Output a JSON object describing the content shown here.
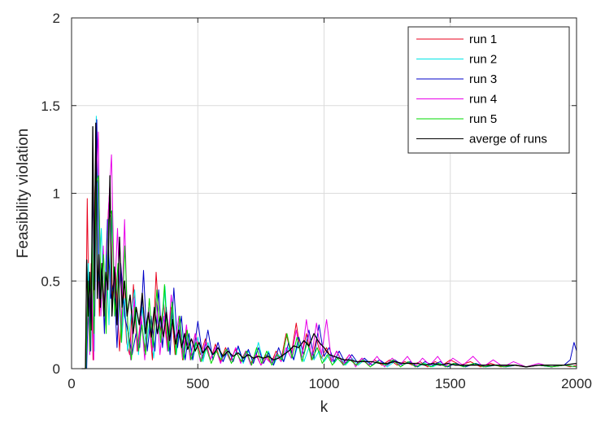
{
  "chart_data": {
    "type": "line",
    "title": "",
    "xlabel": "k",
    "ylabel": "Feasibility violation",
    "xlim": [
      0,
      2000
    ],
    "ylim": [
      0,
      2
    ],
    "xticks": [
      0,
      500,
      1000,
      1500,
      2000
    ],
    "yticks": [
      0,
      0.5,
      1,
      1.5,
      2
    ],
    "xtick_labels": [
      "0",
      "500",
      "1000",
      "1500",
      "2000"
    ],
    "ytick_labels": [
      "0",
      "0.5",
      "1",
      "1.5",
      "2"
    ],
    "grid": true,
    "legend_position": "top-right",
    "series": [
      {
        "name": "run 1",
        "color": "#e8001c",
        "x": [
          40,
          55,
          62,
          70,
          78,
          85,
          92,
          100,
          110,
          120,
          130,
          140,
          152,
          162,
          175,
          190,
          205,
          218,
          230,
          245,
          260,
          275,
          290,
          305,
          320,
          335,
          350,
          365,
          380,
          395,
          410,
          425,
          440,
          455,
          470,
          490,
          510,
          530,
          550,
          570,
          590,
          610,
          630,
          650,
          670,
          690,
          710,
          730,
          750,
          770,
          790,
          810,
          830,
          850,
          870,
          890,
          910,
          930,
          950,
          970,
          990,
          1010,
          1030,
          1050,
          1075,
          1100,
          1125,
          1150,
          1175,
          1200,
          1230,
          1260,
          1290,
          1320,
          1350,
          1380,
          1410,
          1440,
          1470,
          1500,
          1540,
          1580,
          1620,
          1660,
          1700,
          1750,
          1800,
          1850,
          1900,
          1950,
          1975,
          2000
        ],
        "y": [
          0,
          0,
          0.97,
          0.2,
          0.6,
          0.05,
          1.0,
          1.3,
          0.3,
          0.6,
          0.35,
          0.75,
          1.05,
          0.4,
          0.55,
          0.1,
          0.5,
          0.15,
          0.08,
          0.48,
          0.1,
          0.3,
          0.1,
          0.32,
          0.05,
          0.55,
          0.2,
          0.38,
          0.12,
          0.35,
          0.08,
          0.25,
          0.05,
          0.22,
          0.06,
          0.2,
          0.08,
          0.17,
          0.05,
          0.14,
          0.04,
          0.12,
          0.05,
          0.11,
          0.04,
          0.1,
          0.03,
          0.09,
          0.02,
          0.08,
          0.03,
          0.1,
          0.05,
          0.2,
          0.08,
          0.26,
          0.06,
          0.2,
          0.05,
          0.17,
          0.06,
          0.12,
          0.04,
          0.1,
          0.03,
          0.08,
          0.02,
          0.06,
          0.02,
          0.05,
          0.02,
          0.05,
          0.02,
          0.04,
          0.02,
          0.04,
          0.01,
          0.04,
          0.02,
          0.05,
          0.02,
          0.04,
          0.01,
          0.03,
          0.01,
          0.02,
          0.01,
          0.02,
          0.01,
          0.02,
          0.01,
          0.02
        ]
      },
      {
        "name": "run 2",
        "color": "#00e5e5",
        "x": [
          40,
          58,
          66,
          74,
          82,
          90,
          98,
          108,
          118,
          128,
          138,
          148,
          160,
          172,
          185,
          198,
          210,
          222,
          235,
          250,
          265,
          280,
          295,
          310,
          325,
          340,
          355,
          370,
          385,
          400,
          415,
          430,
          445,
          460,
          480,
          500,
          520,
          540,
          560,
          580,
          600,
          620,
          640,
          660,
          680,
          700,
          720,
          740,
          760,
          780,
          800,
          820,
          840,
          860,
          880,
          900,
          920,
          940,
          960,
          980,
          1000,
          1020,
          1040,
          1060,
          1085,
          1110,
          1135,
          1160,
          1190,
          1220,
          1250,
          1280,
          1310,
          1340,
          1370,
          1400,
          1430,
          1460,
          1490,
          1520,
          1560,
          1600,
          1640,
          1680,
          1720,
          1760,
          1800,
          1850,
          1900,
          1950,
          2000
        ],
        "y": [
          0,
          0,
          0.6,
          0.15,
          0.7,
          0.1,
          1.44,
          0.5,
          0.8,
          0.3,
          0.65,
          0.25,
          0.9,
          0.35,
          0.6,
          0.15,
          0.4,
          0.1,
          0.3,
          0.45,
          0.08,
          0.35,
          0.12,
          0.28,
          0.06,
          0.3,
          0.15,
          0.47,
          0.1,
          0.38,
          0.08,
          0.28,
          0.06,
          0.2,
          0.05,
          0.18,
          0.04,
          0.15,
          0.06,
          0.12,
          0.04,
          0.1,
          0.05,
          0.12,
          0.03,
          0.1,
          0.04,
          0.15,
          0.03,
          0.1,
          0.02,
          0.08,
          0.04,
          0.12,
          0.05,
          0.15,
          0.04,
          0.12,
          0.05,
          0.1,
          0.04,
          0.08,
          0.03,
          0.07,
          0.02,
          0.06,
          0.02,
          0.05,
          0.02,
          0.05,
          0.01,
          0.04,
          0.02,
          0.04,
          0.01,
          0.03,
          0.01,
          0.03,
          0.01,
          0.03,
          0.01,
          0.03,
          0.01,
          0.02,
          0.01,
          0.02,
          0.01,
          0.02,
          0.01,
          0.02,
          0.01
        ]
      },
      {
        "name": "run 3",
        "color": "#0000c8",
        "x": [
          40,
          60,
          68,
          76,
          84,
          92,
          100,
          110,
          120,
          130,
          142,
          155,
          168,
          180,
          195,
          210,
          225,
          240,
          255,
          270,
          285,
          300,
          315,
          330,
          345,
          360,
          375,
          390,
          405,
          420,
          435,
          450,
          465,
          480,
          500,
          520,
          540,
          560,
          580,
          600,
          620,
          640,
          660,
          680,
          700,
          720,
          740,
          760,
          780,
          800,
          820,
          840,
          860,
          880,
          900,
          920,
          940,
          960,
          980,
          1000,
          1020,
          1040,
          1060,
          1085,
          1110,
          1135,
          1160,
          1190,
          1220,
          1250,
          1280,
          1310,
          1340,
          1370,
          1400,
          1430,
          1460,
          1490,
          1520,
          1560,
          1600,
          1640,
          1680,
          1720,
          1760,
          1800,
          1850,
          1900,
          1950,
          1975,
          1990,
          2000
        ],
        "y": [
          0,
          0,
          0.5,
          0.1,
          1.05,
          0.3,
          1.42,
          0.4,
          0.6,
          0.2,
          0.85,
          0.4,
          0.5,
          0.12,
          0.6,
          0.3,
          0.2,
          0.08,
          0.2,
          0.12,
          0.56,
          0.1,
          0.3,
          0.1,
          0.45,
          0.12,
          0.35,
          0.08,
          0.46,
          0.12,
          0.3,
          0.05,
          0.2,
          0.05,
          0.27,
          0.06,
          0.22,
          0.05,
          0.15,
          0.04,
          0.12,
          0.04,
          0.13,
          0.04,
          0.11,
          0.03,
          0.12,
          0.03,
          0.09,
          0.02,
          0.12,
          0.04,
          0.15,
          0.05,
          0.18,
          0.08,
          0.22,
          0.06,
          0.25,
          0.07,
          0.12,
          0.04,
          0.1,
          0.03,
          0.08,
          0.03,
          0.06,
          0.02,
          0.05,
          0.02,
          0.05,
          0.02,
          0.04,
          0.01,
          0.04,
          0.02,
          0.04,
          0.01,
          0.03,
          0.01,
          0.03,
          0.01,
          0.02,
          0.01,
          0.02,
          0.01,
          0.02,
          0.01,
          0.02,
          0.05,
          0.15,
          0.1
        ]
      },
      {
        "name": "run 4",
        "color": "#e800e8",
        "x": [
          40,
          56,
          64,
          72,
          80,
          88,
          96,
          106,
          116,
          126,
          136,
          146,
          158,
          170,
          182,
          196,
          210,
          222,
          234,
          248,
          262,
          276,
          290,
          305,
          320,
          335,
          350,
          365,
          380,
          395,
          410,
          425,
          440,
          455,
          470,
          490,
          510,
          530,
          550,
          570,
          590,
          610,
          630,
          650,
          670,
          690,
          710,
          730,
          750,
          770,
          790,
          810,
          830,
          850,
          870,
          890,
          910,
          930,
          950,
          970,
          990,
          1010,
          1030,
          1050,
          1075,
          1100,
          1125,
          1150,
          1180,
          1210,
          1240,
          1270,
          1300,
          1330,
          1360,
          1390,
          1420,
          1450,
          1480,
          1510,
          1550,
          1590,
          1630,
          1670,
          1710,
          1750,
          1800,
          1850,
          1900,
          1950,
          2000
        ],
        "y": [
          0,
          0,
          0.4,
          0.08,
          0.5,
          0.05,
          1.0,
          1.35,
          0.3,
          0.7,
          0.25,
          0.9,
          1.22,
          0.4,
          0.8,
          0.2,
          0.85,
          0.25,
          0.05,
          0.4,
          0.1,
          0.3,
          0.05,
          0.35,
          0.1,
          0.4,
          0.08,
          0.3,
          0.1,
          0.42,
          0.15,
          0.3,
          0.06,
          0.25,
          0.05,
          0.2,
          0.04,
          0.15,
          0.05,
          0.12,
          0.03,
          0.1,
          0.04,
          0.12,
          0.03,
          0.1,
          0.02,
          0.08,
          0.02,
          0.06,
          0.03,
          0.08,
          0.04,
          0.12,
          0.06,
          0.22,
          0.05,
          0.28,
          0.06,
          0.26,
          0.08,
          0.28,
          0.04,
          0.1,
          0.02,
          0.08,
          0.01,
          0.06,
          0.02,
          0.07,
          0.01,
          0.06,
          0.02,
          0.07,
          0.01,
          0.06,
          0.02,
          0.07,
          0.01,
          0.06,
          0.02,
          0.07,
          0.01,
          0.05,
          0.01,
          0.04,
          0.01,
          0.03,
          0.01,
          0.02,
          0.01
        ]
      },
      {
        "name": "run 5",
        "color": "#00d800",
        "x": [
          40,
          57,
          65,
          73,
          81,
          89,
          97,
          107,
          117,
          127,
          137,
          147,
          159,
          171,
          184,
          197,
          211,
          224,
          237,
          251,
          265,
          279,
          293,
          308,
          323,
          338,
          353,
          368,
          383,
          398,
          413,
          428,
          443,
          458,
          473,
          493,
          513,
          533,
          553,
          573,
          593,
          613,
          633,
          653,
          673,
          693,
          713,
          733,
          753,
          773,
          793,
          813,
          833,
          853,
          873,
          893,
          913,
          933,
          953,
          973,
          993,
          1013,
          1033,
          1053,
          1078,
          1103,
          1128,
          1153,
          1183,
          1213,
          1243,
          1273,
          1303,
          1333,
          1363,
          1393,
          1423,
          1453,
          1483,
          1513,
          1553,
          1593,
          1633,
          1673,
          1713,
          1753,
          1803,
          1853,
          1903,
          1953,
          2000
        ],
        "y": [
          0,
          0,
          0.5,
          0.1,
          0.75,
          0.2,
          1.05,
          1.1,
          0.4,
          0.65,
          0.2,
          0.85,
          0.9,
          0.3,
          0.6,
          0.15,
          0.7,
          0.2,
          0.05,
          0.35,
          0.1,
          0.25,
          0.08,
          0.4,
          0.12,
          0.45,
          0.15,
          0.48,
          0.1,
          0.38,
          0.08,
          0.3,
          0.05,
          0.22,
          0.05,
          0.15,
          0.04,
          0.12,
          0.03,
          0.1,
          0.05,
          0.11,
          0.03,
          0.09,
          0.04,
          0.1,
          0.02,
          0.12,
          0.03,
          0.1,
          0.02,
          0.08,
          0.05,
          0.2,
          0.06,
          0.18,
          0.04,
          0.15,
          0.05,
          0.12,
          0.03,
          0.08,
          0.02,
          0.06,
          0.02,
          0.05,
          0.02,
          0.05,
          0.01,
          0.04,
          0.02,
          0.05,
          0.01,
          0.04,
          0.01,
          0.03,
          0.01,
          0.03,
          0.01,
          0.03,
          0.01,
          0.03,
          0.01,
          0.02,
          0.01,
          0.02,
          0.01,
          0.02,
          0.01,
          0.02,
          0.01
        ]
      },
      {
        "name": "averge of runs",
        "color": "#000000",
        "x": [
          40,
          55,
          60,
          66,
          72,
          78,
          84,
          90,
          96,
          102,
          108,
          114,
          120,
          128,
          136,
          144,
          152,
          160,
          170,
          180,
          190,
          200,
          210,
          220,
          232,
          244,
          256,
          268,
          280,
          292,
          304,
          316,
          328,
          340,
          352,
          364,
          376,
          388,
          400,
          412,
          424,
          436,
          448,
          460,
          475,
          490,
          505,
          520,
          540,
          560,
          580,
          600,
          620,
          640,
          660,
          680,
          700,
          720,
          740,
          760,
          780,
          800,
          820,
          840,
          860,
          880,
          900,
          920,
          940,
          960,
          980,
          1000,
          1020,
          1040,
          1060,
          1080,
          1100,
          1130,
          1160,
          1190,
          1220,
          1250,
          1280,
          1310,
          1340,
          1370,
          1400,
          1430,
          1460,
          1490,
          1520,
          1560,
          1600,
          1640,
          1680,
          1720,
          1760,
          1800,
          1850,
          1900,
          1950,
          2000
        ],
        "y": [
          0,
          0,
          0.62,
          0.3,
          0.55,
          0.22,
          1.38,
          0.45,
          1.4,
          0.4,
          0.65,
          0.35,
          0.6,
          0.3,
          0.55,
          0.45,
          1.1,
          0.3,
          0.58,
          0.25,
          0.75,
          0.35,
          0.5,
          0.3,
          0.42,
          0.2,
          0.35,
          0.25,
          0.43,
          0.2,
          0.32,
          0.18,
          0.35,
          0.2,
          0.3,
          0.18,
          0.32,
          0.16,
          0.28,
          0.14,
          0.22,
          0.12,
          0.2,
          0.11,
          0.17,
          0.1,
          0.15,
          0.09,
          0.13,
          0.08,
          0.12,
          0.07,
          0.1,
          0.07,
          0.09,
          0.06,
          0.08,
          0.06,
          0.07,
          0.06,
          0.07,
          0.05,
          0.06,
          0.08,
          0.1,
          0.13,
          0.12,
          0.16,
          0.13,
          0.2,
          0.15,
          0.12,
          0.08,
          0.07,
          0.06,
          0.05,
          0.05,
          0.04,
          0.04,
          0.04,
          0.03,
          0.03,
          0.04,
          0.03,
          0.03,
          0.03,
          0.02,
          0.03,
          0.02,
          0.03,
          0.02,
          0.02,
          0.02,
          0.02,
          0.02,
          0.02,
          0.02,
          0.01,
          0.02,
          0.02,
          0.02,
          0.03
        ]
      }
    ]
  }
}
